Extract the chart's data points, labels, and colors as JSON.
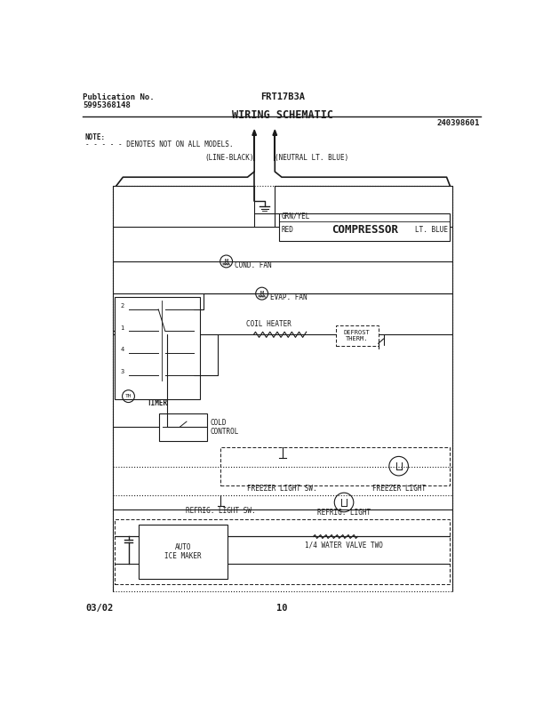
{
  "title_left1": "Publication No.",
  "title_left2": "5995368148",
  "title_center": "FRT17B3A",
  "title_schematic": "WIRING SCHEMATIC",
  "part_number": "240398601",
  "date": "03/02",
  "page": "10",
  "note_text": "NOTE:",
  "note_detail": "- - - - - DENOTES NOT ON ALL MODELS.",
  "label_line_black": "(LINE-BLACK)",
  "label_neutral": "(NEUTRAL LT. BLUE)",
  "label_grn_yel": "GRN/YEL",
  "label_red": "RED",
  "label_compressor": "COMPRESSOR",
  "label_lt_blue": "LT. BLUE",
  "label_cond_fan": "COND. FAN",
  "label_evap_fan": "EVAP. FAN",
  "label_coil_heater": "COIL HEATER",
  "label_defrost_therm": "DEFROST\nTHERM.",
  "label_timer": "TIMER",
  "label_cold_control": "COLD\nCONTROL",
  "label_freezer_light_sw": "FREEZER LIGHT SW.",
  "label_freezer_light": "FREEZER LIGHT",
  "label_refrig_light_sw": "REFRIG. LIGHT SW.",
  "label_refrig_light": "REFRIG. LIGHT",
  "label_auto_ice": "AUTO\nICE MAKER",
  "label_water_valve": "1/4 WATER VALVE TWO",
  "bg_color": "#ffffff",
  "line_color": "#1a1a1a",
  "font_family": "DejaVu Sans Mono"
}
